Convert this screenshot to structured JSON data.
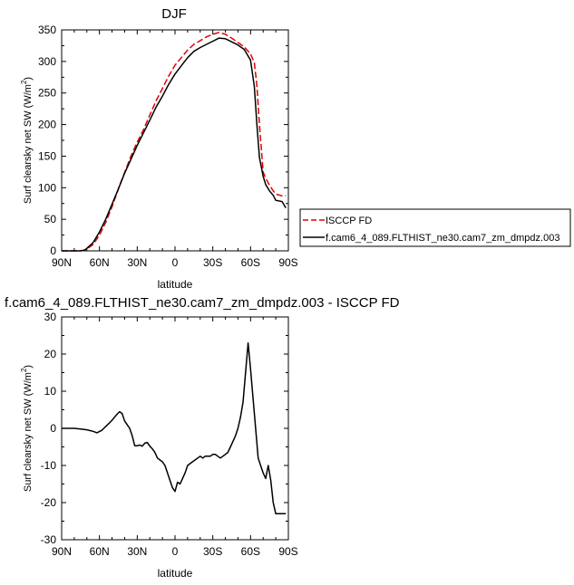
{
  "chart_data": [
    {
      "type": "line",
      "title": "DJF",
      "xlabel": "latitude",
      "ylabel": "Surf clearsky net SW (W/m²)",
      "ylabel_parts": {
        "main": "Surf clearsky net SW (W/m",
        "sup": "2",
        "close": ")"
      },
      "xlim": [
        -90,
        90
      ],
      "ylim": [
        0,
        350
      ],
      "x_ticks": [
        -90,
        -60,
        -30,
        0,
        30,
        60,
        90
      ],
      "x_tick_labels": [
        "90N",
        "60N",
        "30N",
        "0",
        "30S",
        "60S",
        "90S"
      ],
      "y_ticks": [
        0,
        50,
        100,
        150,
        200,
        250,
        300,
        350
      ],
      "y_tick_labels": [
        "0",
        "50",
        "100",
        "150",
        "200",
        "250",
        "300",
        "350"
      ],
      "grid": false,
      "legend_position": "right",
      "series": [
        {
          "name": "ISCCP FD",
          "color": "#e00000",
          "dash": "dashed",
          "x": [
            -90,
            -80,
            -75,
            -72,
            -70,
            -65,
            -60,
            -55,
            -50,
            -45,
            -40,
            -35,
            -30,
            -25,
            -20,
            -15,
            -10,
            -5,
            0,
            5,
            10,
            15,
            20,
            25,
            30,
            35,
            40,
            45,
            50,
            55,
            60,
            63,
            65,
            67,
            70,
            72,
            75,
            78,
            80,
            85,
            88
          ],
          "y": [
            0,
            0,
            0,
            1,
            3,
            10,
            25,
            45,
            70,
            98,
            124,
            150,
            172,
            192,
            215,
            238,
            257,
            277,
            294,
            306,
            318,
            327,
            333,
            339,
            343,
            346,
            343,
            337,
            330,
            323,
            312,
            298,
            262,
            200,
            125,
            115,
            104,
            95,
            90,
            87,
            87
          ]
        },
        {
          "name": "f.cam6_4_089.FLTHIST_ne30.cam7_zm_dmpdz.003",
          "color": "#000000",
          "dash": "solid",
          "x": [
            -90,
            -80,
            -75,
            -72,
            -70,
            -65,
            -60,
            -55,
            -50,
            -45,
            -40,
            -35,
            -30,
            -25,
            -20,
            -15,
            -10,
            -5,
            0,
            5,
            10,
            15,
            20,
            25,
            30,
            35,
            40,
            45,
            50,
            55,
            60,
            63,
            65,
            67,
            70,
            72,
            75,
            78,
            80,
            85,
            88
          ],
          "y": [
            0,
            0,
            0,
            1,
            4,
            13,
            30,
            50,
            74,
            98,
            123,
            145,
            167,
            187,
            207,
            228,
            245,
            264,
            280,
            293,
            306,
            316,
            322,
            327,
            332,
            337,
            336,
            331,
            326,
            319,
            302,
            260,
            200,
            148,
            118,
            105,
            95,
            88,
            80,
            78,
            68
          ]
        }
      ]
    },
    {
      "type": "line",
      "title": "f.cam6_4_089.FLTHIST_ne30.cam7_zm_dmpdz.003 - ISCCP FD",
      "xlabel": "latitude",
      "ylabel": "Surf clearsky net SW (W/m²)",
      "ylabel_parts": {
        "main": "Surf clearsky net SW (W/m",
        "sup": "2",
        "close": ")"
      },
      "xlim": [
        -90,
        90
      ],
      "ylim": [
        -30,
        30
      ],
      "x_ticks": [
        -90,
        -60,
        -30,
        0,
        30,
        60,
        90
      ],
      "x_tick_labels": [
        "90N",
        "60N",
        "30N",
        "0",
        "30S",
        "60S",
        "90S"
      ],
      "y_ticks": [
        -30,
        -20,
        -10,
        0,
        10,
        20,
        30
      ],
      "y_tick_labels": [
        "-30",
        "-20",
        "-10",
        "0",
        "10",
        "20",
        "30"
      ],
      "grid": false,
      "series": [
        {
          "color": "#000000",
          "dash": "solid",
          "x": [
            -90,
            -85,
            -80,
            -75,
            -70,
            -65,
            -62,
            -58,
            -55,
            -52,
            -50,
            -48,
            -46,
            -44,
            -42,
            -40,
            -38,
            -36,
            -34,
            -32,
            -30,
            -28,
            -26,
            -24,
            -22,
            -20,
            -18,
            -16,
            -14,
            -12,
            -10,
            -8,
            -6,
            -4,
            -2,
            0,
            2,
            4,
            6,
            8,
            10,
            12,
            14,
            16,
            18,
            20,
            22,
            24,
            26,
            28,
            30,
            32,
            34,
            36,
            38,
            40,
            42,
            44,
            46,
            48,
            50,
            52,
            54,
            56,
            58,
            60,
            62,
            64,
            66,
            68,
            70,
            72,
            74,
            76,
            78,
            80,
            82,
            84,
            86,
            88
          ],
          "y": [
            0,
            0,
            0,
            -0.2,
            -0.4,
            -0.8,
            -1.2,
            -0.5,
            0.5,
            1.5,
            2.2,
            3,
            3.8,
            4.5,
            4,
            2,
            1,
            0,
            -2,
            -4.7,
            -4.7,
            -4.5,
            -4.8,
            -4,
            -3.8,
            -4.8,
            -5.5,
            -6.5,
            -8,
            -8.5,
            -9,
            -10,
            -12,
            -14,
            -16,
            -17,
            -14.5,
            -15,
            -13.5,
            -12,
            -10,
            -9.5,
            -9,
            -8.5,
            -8,
            -7.5,
            -8,
            -7.5,
            -7.5,
            -7.5,
            -7,
            -7,
            -7.5,
            -8,
            -7.5,
            -7,
            -6.5,
            -5,
            -3.5,
            -2,
            0,
            3,
            7,
            15,
            23,
            16,
            8,
            0,
            -8,
            -10,
            -12,
            -13.5,
            -10,
            -14,
            -20,
            -23,
            -23,
            -23,
            -23,
            -23
          ]
        }
      ]
    }
  ]
}
